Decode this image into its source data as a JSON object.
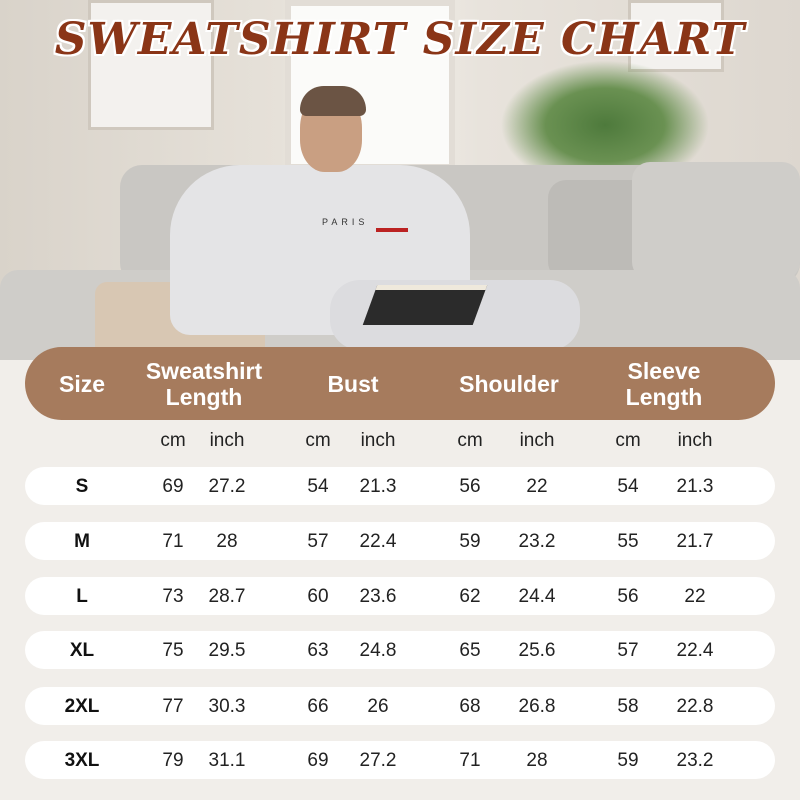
{
  "title": "SWEATSHIRT SIZE CHART",
  "shirt_print": "PARIS",
  "colors": {
    "header": "#a67b5d",
    "title": "#8a3517",
    "row_bg": "#ffffff"
  },
  "table": {
    "headers": [
      "Size",
      "Sweatshirt Length",
      "Bust",
      "Shoulder",
      "Sleeve Length"
    ],
    "header_lines": [
      [
        "Size"
      ],
      [
        "Sweatshirt",
        "Length"
      ],
      [
        "Bust"
      ],
      [
        "Shoulder"
      ],
      [
        "Sleeve",
        "Length"
      ]
    ],
    "units": [
      "cm",
      "inch",
      "cm",
      "inch",
      "cm",
      "inch",
      "cm",
      "inch"
    ],
    "rows": [
      [
        "S",
        "69",
        "27.2",
        "54",
        "21.3",
        "56",
        "22",
        "54",
        "21.3"
      ],
      [
        "M",
        "71",
        "28",
        "57",
        "22.4",
        "59",
        "23.2",
        "55",
        "21.7"
      ],
      [
        "L",
        "73",
        "28.7",
        "60",
        "23.6",
        "62",
        "24.4",
        "56",
        "22"
      ],
      [
        "XL",
        "75",
        "29.5",
        "63",
        "24.8",
        "65",
        "25.6",
        "57",
        "22.4"
      ],
      [
        "2XL",
        "77",
        "30.3",
        "66",
        "26",
        "68",
        "26.8",
        "58",
        "22.8"
      ],
      [
        "3XL",
        "79",
        "31.1",
        "69",
        "27.2",
        "71",
        "28",
        "59",
        "23.2"
      ]
    ]
  }
}
